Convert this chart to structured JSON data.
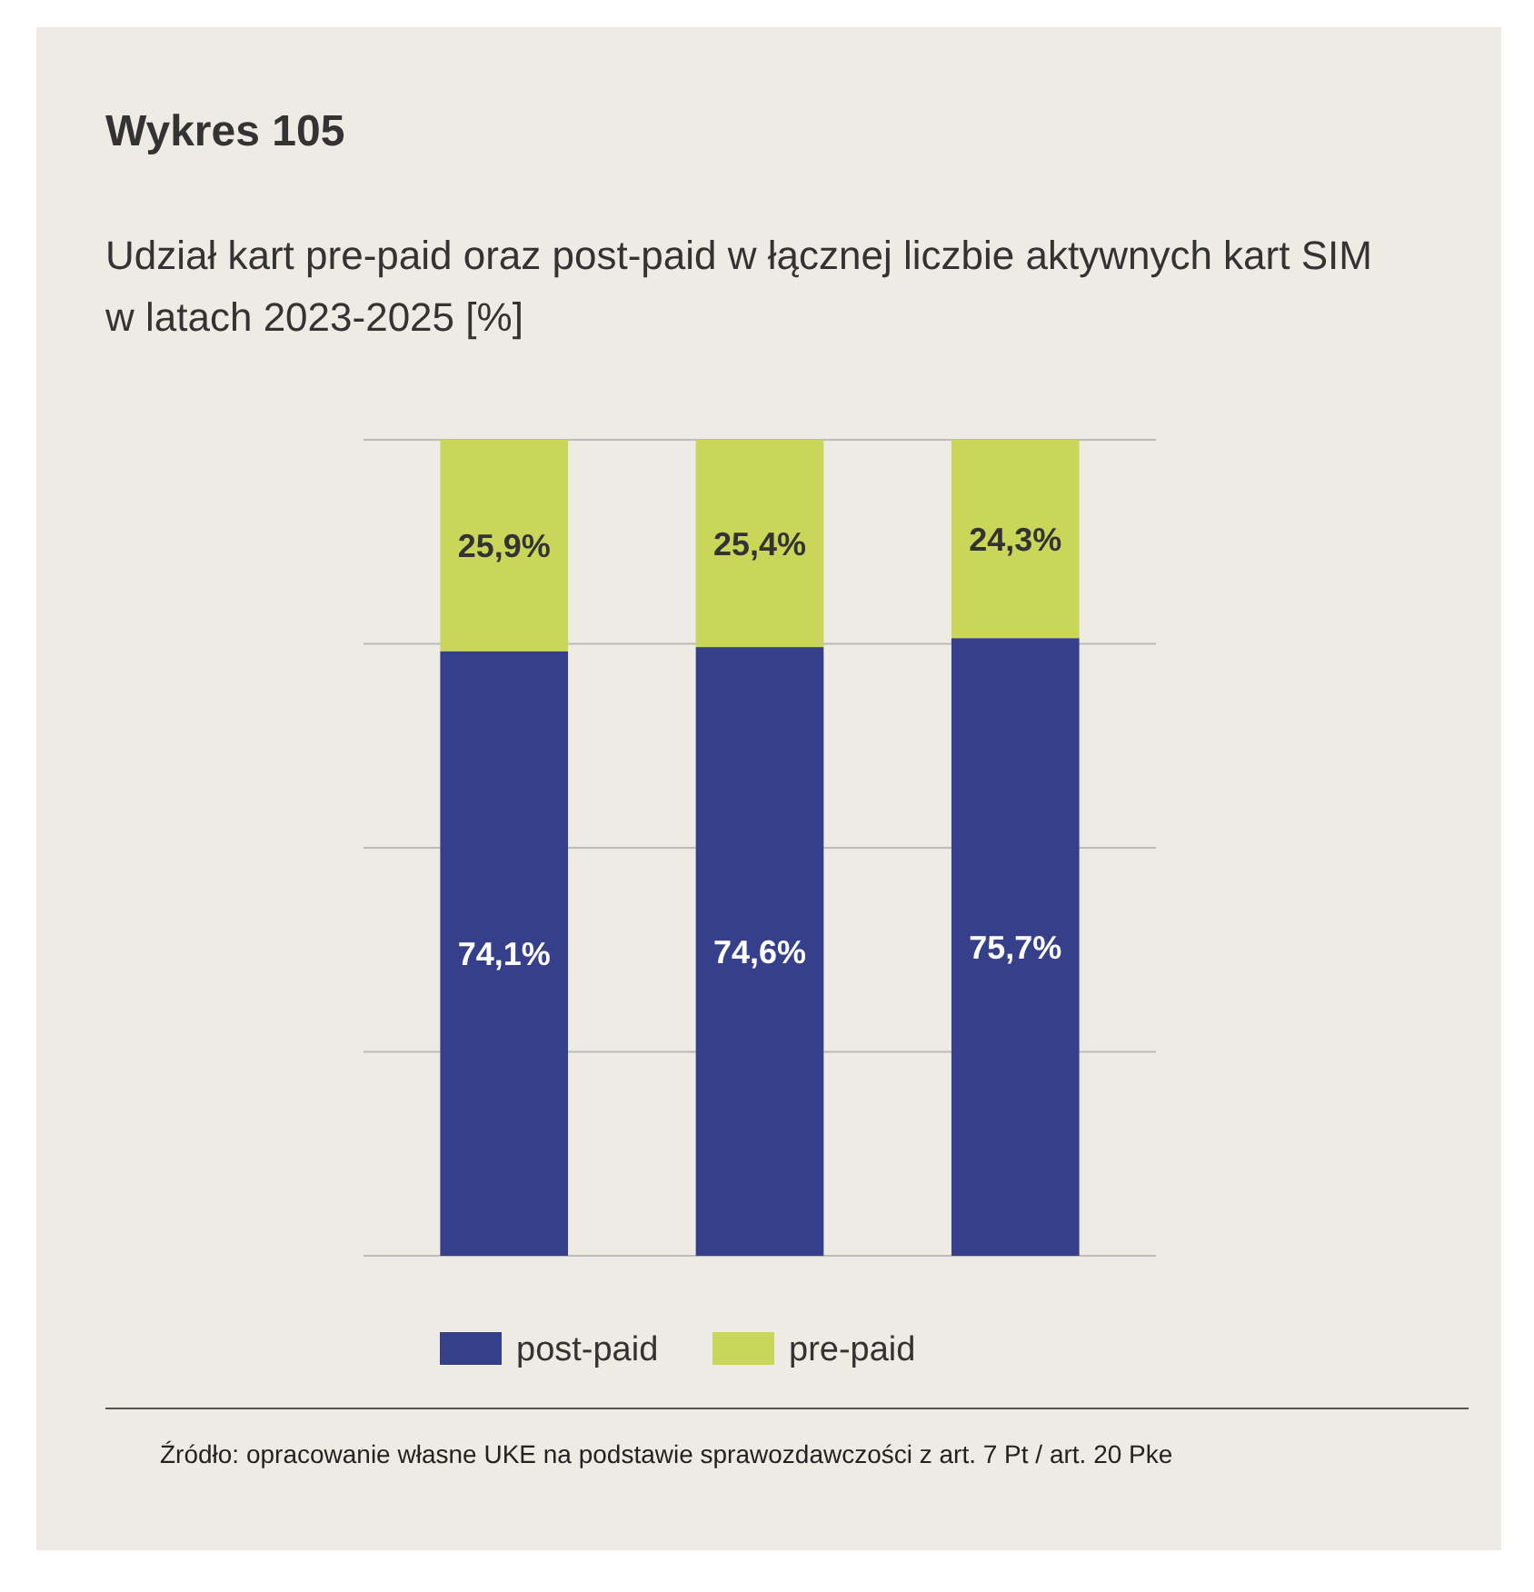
{
  "chart_data": {
    "type": "bar",
    "title": "Wykres 105",
    "subtitle": "Udział kart pre-paid oraz post-paid w łącznej liczbie aktywnych kart SIM w latach 2023-2025 [%]",
    "categories": [
      null,
      null,
      null
    ],
    "stacked": true,
    "series": [
      {
        "name": "post-paid",
        "color": "#353f8a",
        "values": [
          74.1,
          74.6,
          75.7
        ],
        "value_labels": [
          "74,1%",
          "74,6%",
          "75,7%"
        ]
      },
      {
        "name": "pre-paid",
        "color": "#c9d65a",
        "values": [
          25.9,
          25.4,
          24.3
        ],
        "value_labels": [
          "25,9%",
          "25,4%",
          "24,3%"
        ]
      }
    ],
    "ylim": [
      0,
      100
    ],
    "yticks": [
      {
        "value": 0,
        "label": null
      },
      {
        "value": 25,
        "label": null
      },
      {
        "value": 50,
        "label": null
      },
      {
        "value": 75,
        "label": null
      },
      {
        "value": 100,
        "label": null
      }
    ],
    "grid": "y",
    "legend": "bottom",
    "annotations": [
      "Źródło: opracowanie własne UKE na podstawie sprawozdawczości z art. 7 Pt / art. 20 Pke"
    ]
  }
}
